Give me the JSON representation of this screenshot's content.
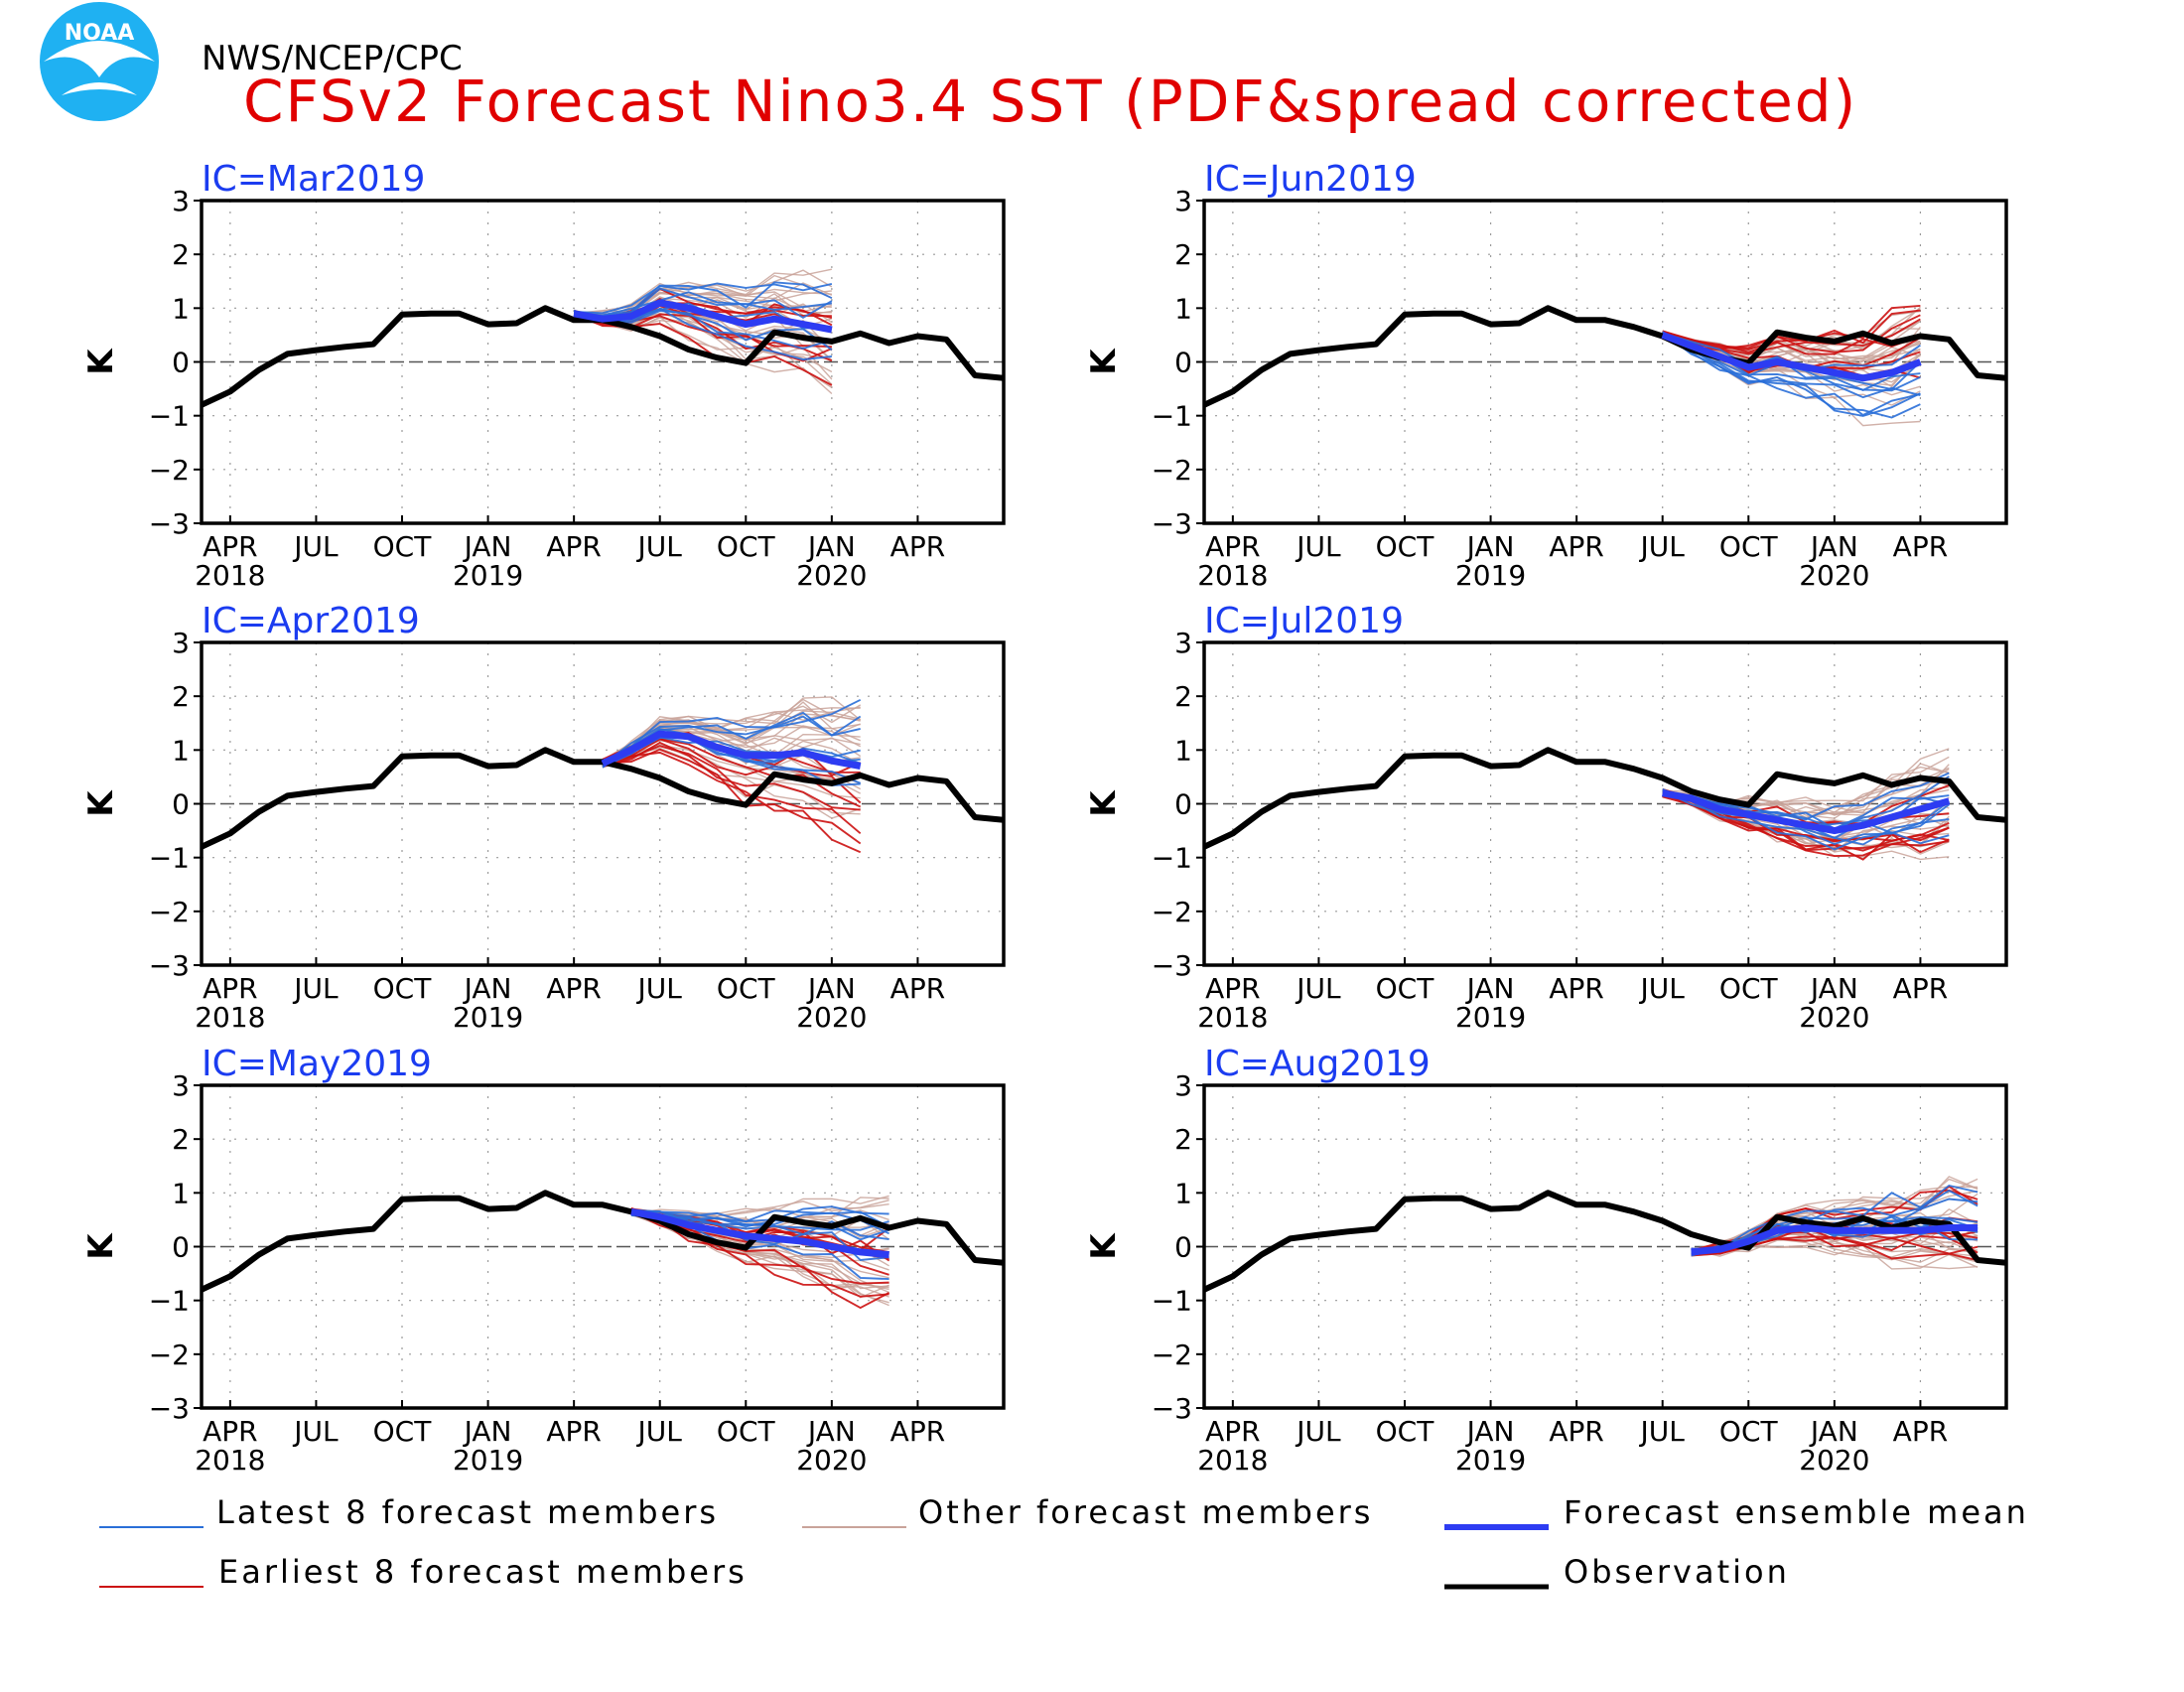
{
  "header": {
    "org": "NWS/NCEP/CPC",
    "title": "CFSv2 Forecast Nino3.4 SST (PDF&spread corrected)",
    "logo_text": "NOAA"
  },
  "colors": {
    "latest": "#2a6fd8",
    "earliest": "#cc1111",
    "other": "#c9a39a",
    "mean": "#2d3cf2",
    "observation": "#000000",
    "title": "#e00000",
    "ic_label": "#1b3cf0"
  },
  "chart_data": [
    {
      "type": "line",
      "panel": "top-left",
      "ic_label": "IC=Mar2019",
      "ylabel": "K",
      "ylim": [
        -3,
        3
      ],
      "yticks": [
        -3,
        -2,
        -1,
        0,
        1,
        2,
        3
      ],
      "xticks": [
        {
          "m": 1,
          "label": "APR",
          "year": "2018"
        },
        {
          "m": 4,
          "label": "JUL"
        },
        {
          "m": 7,
          "label": "OCT"
        },
        {
          "m": 10,
          "label": "JAN",
          "year": "2019"
        },
        {
          "m": 13,
          "label": "APR"
        },
        {
          "m": 16,
          "label": "JUL"
        },
        {
          "m": 19,
          "label": "OCT"
        },
        {
          "m": 22,
          "label": "JAN",
          "year": "2020"
        },
        {
          "m": 25,
          "label": "APR"
        }
      ],
      "mean": {
        "m0": 13,
        "values": [
          0.9,
          0.8,
          0.85,
          1.1,
          1.0,
          0.85,
          0.7,
          0.8,
          0.7,
          0.6
        ]
      },
      "spread": 1.1,
      "earliest_offset": -0.3,
      "latest_offset": 0.15
    },
    {
      "type": "line",
      "panel": "top-right",
      "ic_label": "IC=Jun2019",
      "ylabel": "K",
      "ylim": [
        -3,
        3
      ],
      "yticks": [
        -3,
        -2,
        -1,
        0,
        1,
        2,
        3
      ],
      "xticks": [
        {
          "m": 1,
          "label": "APR",
          "year": "2018"
        },
        {
          "m": 4,
          "label": "JUL"
        },
        {
          "m": 7,
          "label": "OCT"
        },
        {
          "m": 10,
          "label": "JAN",
          "year": "2019"
        },
        {
          "m": 13,
          "label": "APR"
        },
        {
          "m": 16,
          "label": "JUL"
        },
        {
          "m": 19,
          "label": "OCT"
        },
        {
          "m": 22,
          "label": "JAN",
          "year": "2020"
        },
        {
          "m": 25,
          "label": "APR"
        }
      ],
      "mean": {
        "m0": 16,
        "values": [
          0.5,
          0.3,
          0.1,
          -0.1,
          0.0,
          -0.1,
          -0.2,
          -0.3,
          -0.2,
          0.0
        ]
      },
      "spread": 1.0,
      "earliest_offset": 0.35,
      "latest_offset": -0.45
    },
    {
      "type": "line",
      "panel": "middle-left",
      "ic_label": "IC=Apr2019",
      "ylabel": "K",
      "ylim": [
        -3,
        3
      ],
      "yticks": [
        -3,
        -2,
        -1,
        0,
        1,
        2,
        3
      ],
      "xticks": [
        {
          "m": 1,
          "label": "APR",
          "year": "2018"
        },
        {
          "m": 4,
          "label": "JUL"
        },
        {
          "m": 7,
          "label": "OCT"
        },
        {
          "m": 10,
          "label": "JAN",
          "year": "2019"
        },
        {
          "m": 13,
          "label": "APR"
        },
        {
          "m": 16,
          "label": "JUL"
        },
        {
          "m": 19,
          "label": "OCT"
        },
        {
          "m": 22,
          "label": "JAN",
          "year": "2020"
        },
        {
          "m": 25,
          "label": "APR"
        }
      ],
      "mean": {
        "m0": 14,
        "values": [
          0.75,
          1.0,
          1.3,
          1.25,
          1.05,
          0.9,
          0.9,
          0.95,
          0.8,
          0.7
        ]
      },
      "spread": 1.2,
      "earliest_offset": -0.6,
      "latest_offset": 0.35
    },
    {
      "type": "line",
      "panel": "middle-right",
      "ic_label": "IC=Jul2019",
      "ylabel": "K",
      "ylim": [
        -3,
        3
      ],
      "yticks": [
        -3,
        -2,
        -1,
        0,
        1,
        2,
        3
      ],
      "xticks": [
        {
          "m": 1,
          "label": "APR",
          "year": "2018"
        },
        {
          "m": 4,
          "label": "JUL"
        },
        {
          "m": 7,
          "label": "OCT"
        },
        {
          "m": 10,
          "label": "JAN",
          "year": "2019"
        },
        {
          "m": 13,
          "label": "APR"
        },
        {
          "m": 16,
          "label": "JUL"
        },
        {
          "m": 19,
          "label": "OCT"
        },
        {
          "m": 22,
          "label": "JAN",
          "year": "2020"
        },
        {
          "m": 25,
          "label": "APR"
        }
      ],
      "mean": {
        "m0": 16,
        "values": [
          0.2,
          0.1,
          -0.1,
          -0.2,
          -0.3,
          -0.4,
          -0.5,
          -0.4,
          -0.25,
          -0.1,
          0.05
        ]
      },
      "spread": 0.8,
      "earliest_offset": -0.15,
      "latest_offset": 0.0
    },
    {
      "type": "line",
      "panel": "bottom-left",
      "ic_label": "IC=May2019",
      "ylabel": "K",
      "ylim": [
        -3,
        3
      ],
      "yticks": [
        -3,
        -2,
        -1,
        0,
        1,
        2,
        3
      ],
      "xticks": [
        {
          "m": 1,
          "label": "APR",
          "year": "2018"
        },
        {
          "m": 4,
          "label": "JUL"
        },
        {
          "m": 7,
          "label": "OCT"
        },
        {
          "m": 10,
          "label": "JAN",
          "year": "2019"
        },
        {
          "m": 13,
          "label": "APR"
        },
        {
          "m": 16,
          "label": "JUL"
        },
        {
          "m": 19,
          "label": "OCT"
        },
        {
          "m": 22,
          "label": "JAN",
          "year": "2020"
        },
        {
          "m": 25,
          "label": "APR"
        }
      ],
      "mean": {
        "m0": 15,
        "values": [
          0.65,
          0.55,
          0.4,
          0.3,
          0.2,
          0.15,
          0.1,
          0.0,
          -0.1,
          -0.15
        ]
      },
      "spread": 1.0,
      "earliest_offset": -0.45,
      "latest_offset": 0.2
    },
    {
      "type": "line",
      "panel": "bottom-right",
      "ic_label": "IC=Aug2019",
      "ylabel": "K",
      "ylim": [
        -3,
        3
      ],
      "yticks": [
        -3,
        -2,
        -1,
        0,
        1,
        2,
        3
      ],
      "xticks": [
        {
          "m": 1,
          "label": "APR",
          "year": "2018"
        },
        {
          "m": 4,
          "label": "JUL"
        },
        {
          "m": 7,
          "label": "OCT"
        },
        {
          "m": 10,
          "label": "JAN",
          "year": "2019"
        },
        {
          "m": 13,
          "label": "APR"
        },
        {
          "m": 16,
          "label": "JUL"
        },
        {
          "m": 19,
          "label": "OCT"
        },
        {
          "m": 22,
          "label": "JAN",
          "year": "2020"
        },
        {
          "m": 25,
          "label": "APR"
        }
      ],
      "mean": {
        "m0": 17,
        "values": [
          -0.1,
          -0.05,
          0.1,
          0.3,
          0.35,
          0.3,
          0.3,
          0.3,
          0.3,
          0.35,
          0.35
        ]
      },
      "spread": 0.9,
      "earliest_offset": 0.05,
      "latest_offset": 0.2
    }
  ],
  "observation": {
    "m0": 0,
    "values": [
      -0.8,
      -0.55,
      -0.15,
      0.15,
      0.22,
      0.28,
      0.33,
      0.88,
      0.9,
      0.9,
      0.7,
      0.72,
      1.0,
      0.78,
      0.78,
      0.65,
      0.48,
      0.23,
      0.08,
      -0.02,
      0.55,
      0.45,
      0.38,
      0.53,
      0.35,
      0.48,
      0.42,
      -0.25,
      -0.3
    ]
  },
  "legend": [
    {
      "key": "latest",
      "label": "Latest 8 forecast members"
    },
    {
      "key": "other",
      "label": "Other forecast members"
    },
    {
      "key": "mean",
      "label": "Forecast ensemble mean"
    },
    {
      "key": "earliest",
      "label": "Earliest 8 forecast members"
    },
    {
      "key": "observation",
      "label": "Observation"
    }
  ]
}
